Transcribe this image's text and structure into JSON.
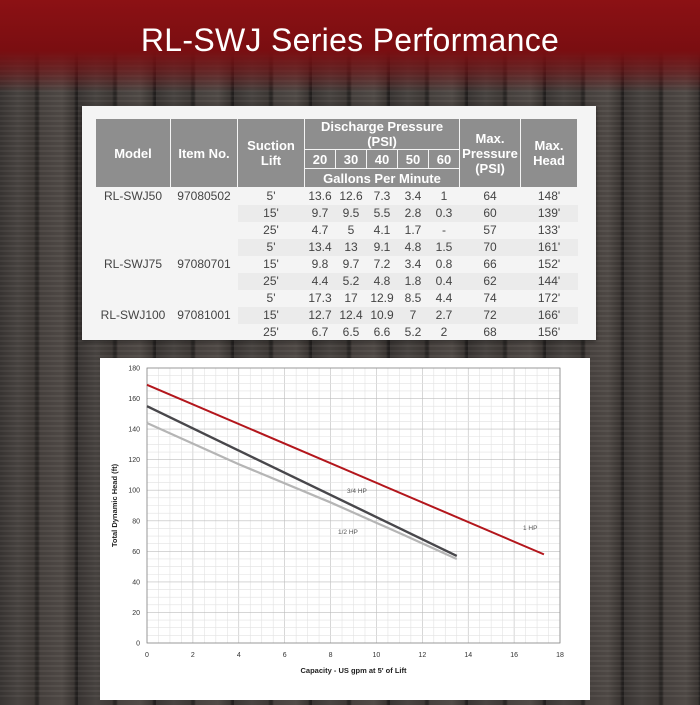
{
  "title": "RL-SWJ Series Performance",
  "table": {
    "headers": {
      "model": "Model",
      "item_no": "Item No.",
      "suction_lift": "Suction Lift",
      "discharge_pressure": "Discharge Pressure (PSI)",
      "pressure_values": [
        "20",
        "30",
        "40",
        "50",
        "60"
      ],
      "gallons_per_minute": "Gallons Per Minute",
      "max_pressure": "Max. Pressure (PSI)",
      "max_head": "Max. Head"
    },
    "rows": [
      {
        "model": "RL-SWJ50",
        "item": "97080502",
        "lift": "5'",
        "gpm": [
          "13.6",
          "12.6",
          "7.3",
          "3.4",
          "1"
        ],
        "max_psi": "64",
        "max_head": "148'"
      },
      {
        "model": "",
        "item": "",
        "lift": "15'",
        "gpm": [
          "9.7",
          "9.5",
          "5.5",
          "2.8",
          "0.3"
        ],
        "max_psi": "60",
        "max_head": "139'"
      },
      {
        "model": "",
        "item": "",
        "lift": "25'",
        "gpm": [
          "4.7",
          "5",
          "4.1",
          "1.7",
          "-"
        ],
        "max_psi": "57",
        "max_head": "133'"
      },
      {
        "model": "",
        "item": "",
        "lift": "5'",
        "gpm": [
          "13.4",
          "13",
          "9.1",
          "4.8",
          "1.5"
        ],
        "max_psi": "70",
        "max_head": "161'"
      },
      {
        "model": "RL-SWJ75",
        "item": "97080701",
        "lift": "15'",
        "gpm": [
          "9.8",
          "9.7",
          "7.2",
          "3.4",
          "0.8"
        ],
        "max_psi": "66",
        "max_head": "152'"
      },
      {
        "model": "",
        "item": "",
        "lift": "25'",
        "gpm": [
          "4.4",
          "5.2",
          "4.8",
          "1.8",
          "0.4"
        ],
        "max_psi": "62",
        "max_head": "144'"
      },
      {
        "model": "",
        "item": "",
        "lift": "5'",
        "gpm": [
          "17.3",
          "17",
          "12.9",
          "8.5",
          "4.4"
        ],
        "max_psi": "74",
        "max_head": "172'"
      },
      {
        "model": "RL-SWJ100",
        "item": "97081001",
        "lift": "15'",
        "gpm": [
          "12.7",
          "12.4",
          "10.9",
          "7",
          "2.7"
        ],
        "max_psi": "72",
        "max_head": "166'"
      },
      {
        "model": "",
        "item": "",
        "lift": "25'",
        "gpm": [
          "6.7",
          "6.5",
          "6.6",
          "5.2",
          "2"
        ],
        "max_psi": "68",
        "max_head": "156'"
      }
    ]
  },
  "chart_data": {
    "type": "line",
    "xlabel": "Capacity - US gpm at 5' of Lift",
    "ylabel": "Total Dynamic Head (ft)",
    "xlim": [
      0,
      18
    ],
    "ylim": [
      0,
      180
    ],
    "x_ticks": [
      "0",
      "2",
      "4",
      "6",
      "8",
      "10",
      "12",
      "14",
      "16",
      "18"
    ],
    "y_ticks": [
      "0",
      "20",
      "40",
      "60",
      "80",
      "100",
      "120",
      "140",
      "160",
      "180"
    ],
    "grid": true,
    "series": [
      {
        "name": "1 HP",
        "color": "#b3161c",
        "points": [
          [
            0,
            169
          ],
          [
            17.3,
            58
          ]
        ]
      },
      {
        "name": "3/4 HP",
        "color": "#48474b",
        "points": [
          [
            0,
            155
          ],
          [
            13.5,
            57
          ]
        ]
      },
      {
        "name": "1/2 HP",
        "color": "#b5b5b5",
        "points": [
          [
            0,
            144
          ],
          [
            4,
            117
          ],
          [
            8,
            92
          ],
          [
            11,
            72
          ],
          [
            13.5,
            55
          ]
        ]
      }
    ]
  }
}
